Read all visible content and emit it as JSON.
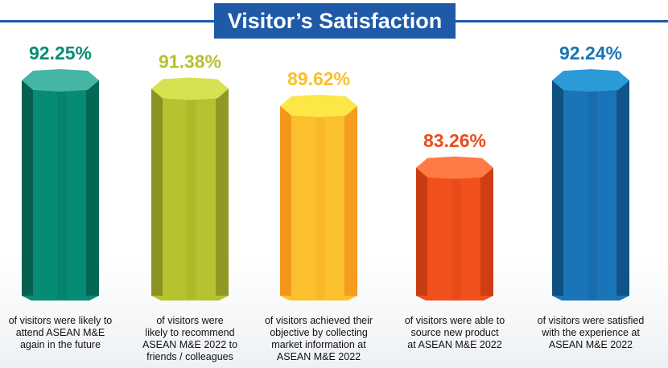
{
  "chart_data": {
    "type": "bar",
    "title": "Visitor’s Satisfaction",
    "categories": [
      "of visitors were likely to attend ASEAN M&E again in the future",
      "of visitors were likely to recommend ASEAN M&E 2022 to friends / colleagues",
      "of visitors achieved their objective by collecting market information at ASEAN M&E 2022",
      "of visitors were able to source new product at ASEAN M&E 2022",
      "of visitors were satisfied with the experience at ASEAN M&E 2022"
    ],
    "values": [
      92.25,
      91.38,
      89.62,
      83.26,
      92.24
    ],
    "value_labels": [
      "92.25%",
      "91.38%",
      "89.62%",
      "83.26%",
      "92.24%"
    ],
    "caption_lines": [
      [
        "of visitors were likely to",
        "attend ASEAN M&E",
        "again in the future"
      ],
      [
        "of visitors were",
        "likely to recommend",
        "ASEAN M&E 2022 to",
        "friends / colleagues"
      ],
      [
        "of visitors achieved their",
        "objective by collecting",
        "market information at",
        "ASEAN M&E 2022"
      ],
      [
        "of visitors were able to",
        "source new product",
        "at ASEAN M&E 2022"
      ],
      [
        "of visitors were satisfied",
        "with the experience at",
        "ASEAN M&E 2022"
      ]
    ],
    "colors": [
      {
        "top": "#45b6a3",
        "main": "#068c75",
        "dark": "#05604f",
        "text": "#068c75"
      },
      {
        "top": "#d7e152",
        "main": "#b6c22e",
        "dark": "#8a9223",
        "text": "#b6c22e"
      },
      {
        "top": "#fde747",
        "main": "#fbc02d",
        "dark": "#f4951c",
        "text": "#f8bf2b"
      },
      {
        "top": "#ff7a45",
        "main": "#f1501c",
        "dark": "#c83b10",
        "text": "#ea4c1b"
      },
      {
        "top": "#2b9bd8",
        "main": "#1a74b8",
        "dark": "#10507f",
        "text": "#1a74b8"
      }
    ]
  }
}
